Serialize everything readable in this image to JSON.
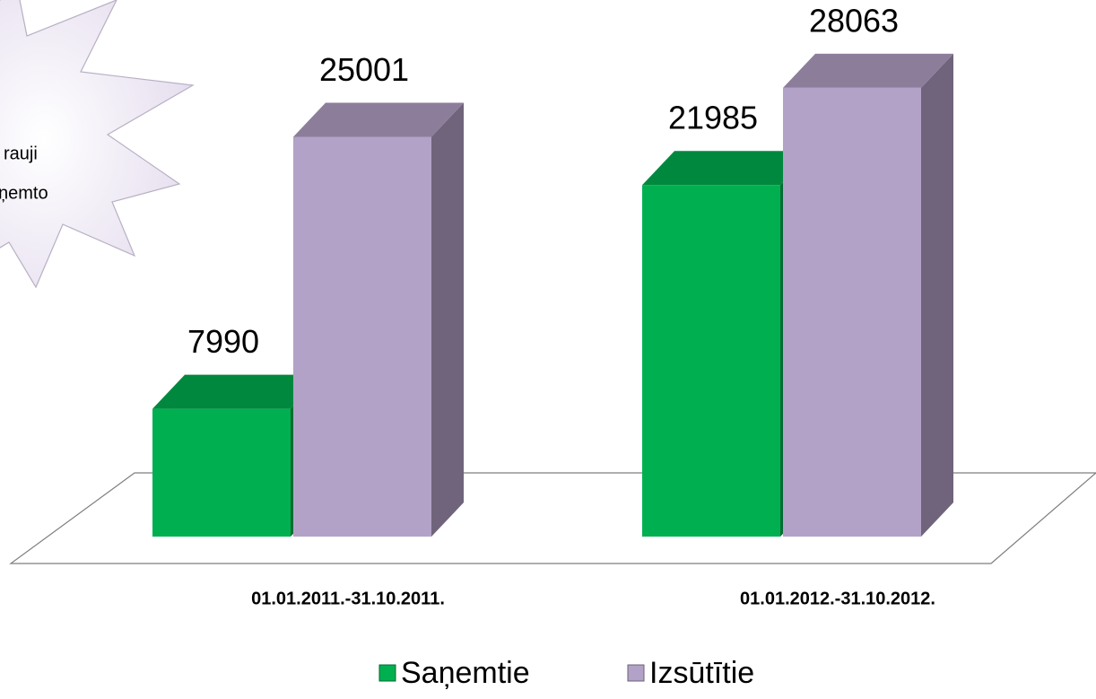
{
  "chart_data": {
    "type": "bar3d",
    "annotation": [
      "rauji",
      "ņemto"
    ],
    "categories": [
      "01.01.2011.-31.10.2011.",
      "01.01.2012.-31.10.2012."
    ],
    "series": [
      {
        "name": "Saņemtie",
        "color": "#00b050",
        "values": [
          7990,
          21985
        ]
      },
      {
        "name": "Izsūtītie",
        "color": "#b3a2c7",
        "values": [
          25001,
          28063
        ]
      }
    ]
  }
}
